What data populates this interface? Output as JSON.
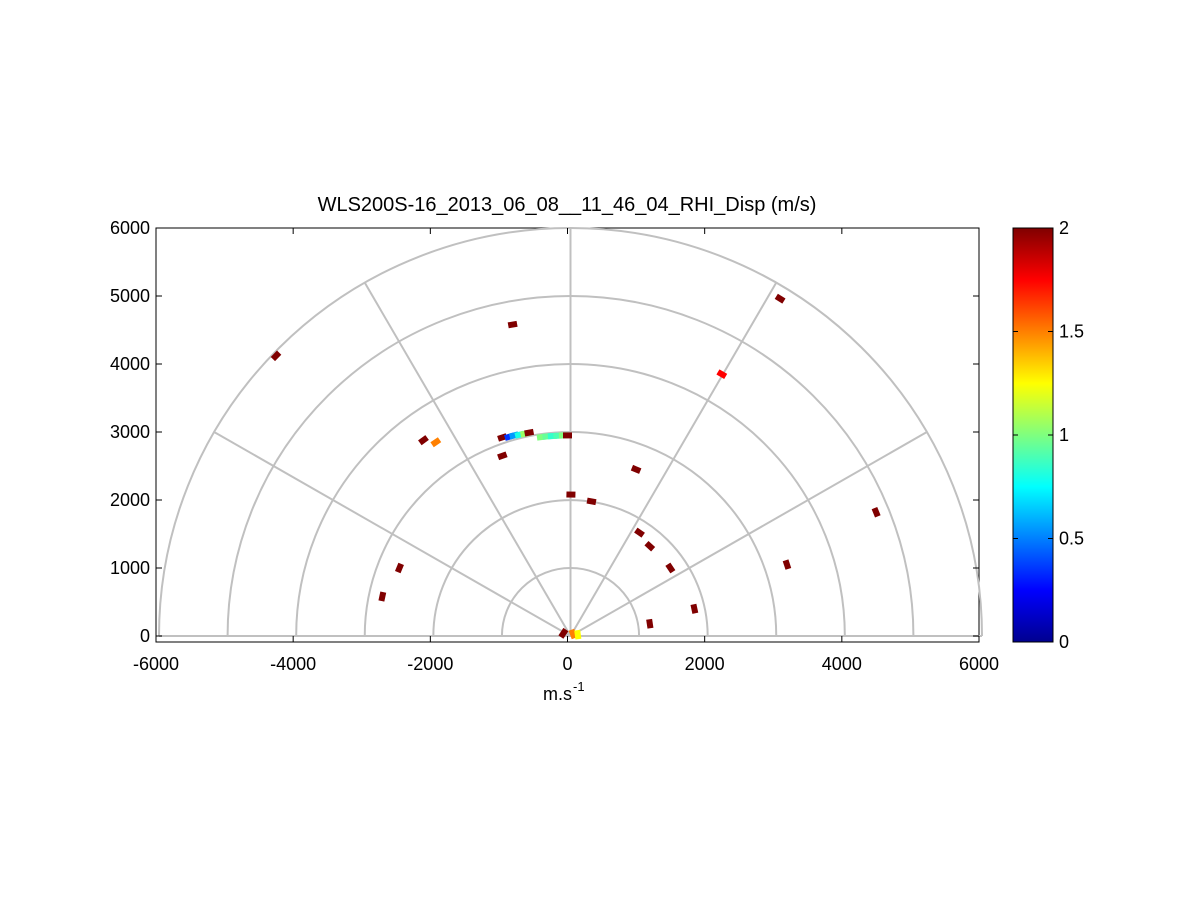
{
  "chart_data": {
    "type": "scatter",
    "subtype": "polar-rhi",
    "title": "WLS200S-16_2013_06_08__11_46_04_RHI_Disp (m/s)",
    "xlabel": "m.s",
    "xlabel_superscript": "-1",
    "ylabel": "",
    "xlim": [
      -6000,
      6000
    ],
    "ylim": [
      0,
      6000
    ],
    "xticks": [
      "-6000",
      "-4000",
      "-2000",
      "0",
      "2000",
      "4000",
      "6000"
    ],
    "yticks": [
      "0",
      "1000",
      "2000",
      "3000",
      "4000",
      "5000",
      "6000"
    ],
    "polar_grid": {
      "ring_radii": [
        1000,
        2000,
        3000,
        4000,
        5000,
        6000
      ],
      "spoke_angles_deg": [
        0,
        30,
        60,
        90,
        120,
        150,
        180
      ]
    },
    "colorbar": {
      "range": [
        0,
        2
      ],
      "ticks": [
        "0",
        "0.5",
        "1",
        "1.5",
        "2"
      ],
      "colormap": "jet"
    },
    "points": [
      {
        "x": -4250,
        "y": 4120,
        "v": 2.0
      },
      {
        "x": -800,
        "y": 4580,
        "v": 2.0
      },
      {
        "x": 3100,
        "y": 4960,
        "v": 2.0
      },
      {
        "x": 2250,
        "y": 3850,
        "v": 1.75
      },
      {
        "x": -2100,
        "y": 2880,
        "v": 2.0
      },
      {
        "x": -1920,
        "y": 2850,
        "v": 1.5
      },
      {
        "x": -950,
        "y": 2650,
        "v": 2.0
      },
      {
        "x": -950,
        "y": 2920,
        "v": 2.0
      },
      {
        "x": -850,
        "y": 2930,
        "v": 0.35
      },
      {
        "x": -780,
        "y": 2950,
        "v": 0.55
      },
      {
        "x": -700,
        "y": 2960,
        "v": 0.8
      },
      {
        "x": -620,
        "y": 2975,
        "v": 1.05
      },
      {
        "x": -560,
        "y": 2990,
        "v": 2.0
      },
      {
        "x": -380,
        "y": 2925,
        "v": 1.0
      },
      {
        "x": -300,
        "y": 2935,
        "v": 0.95
      },
      {
        "x": -220,
        "y": 2940,
        "v": 0.85
      },
      {
        "x": -140,
        "y": 2945,
        "v": 0.9
      },
      {
        "x": -60,
        "y": 2950,
        "v": 1.0
      },
      {
        "x": 0,
        "y": 2950,
        "v": 2.0
      },
      {
        "x": 1000,
        "y": 2450,
        "v": 2.0
      },
      {
        "x": 4500,
        "y": 1820,
        "v": 2.0
      },
      {
        "x": 3200,
        "y": 1050,
        "v": 2.0
      },
      {
        "x": -2450,
        "y": 1000,
        "v": 2.0
      },
      {
        "x": -2700,
        "y": 580,
        "v": 2.0
      },
      {
        "x": 50,
        "y": 2080,
        "v": 2.0
      },
      {
        "x": 350,
        "y": 1980,
        "v": 2.0
      },
      {
        "x": 1050,
        "y": 1520,
        "v": 2.0
      },
      {
        "x": 1200,
        "y": 1320,
        "v": 2.0
      },
      {
        "x": 1500,
        "y": 1000,
        "v": 2.0
      },
      {
        "x": 1850,
        "y": 400,
        "v": 2.0
      },
      {
        "x": 1200,
        "y": 180,
        "v": 2.0
      },
      {
        "x": 80,
        "y": 30,
        "v": 1.5
      },
      {
        "x": 150,
        "y": 20,
        "v": 1.25
      },
      {
        "x": -60,
        "y": 40,
        "v": 2.0
      }
    ]
  }
}
